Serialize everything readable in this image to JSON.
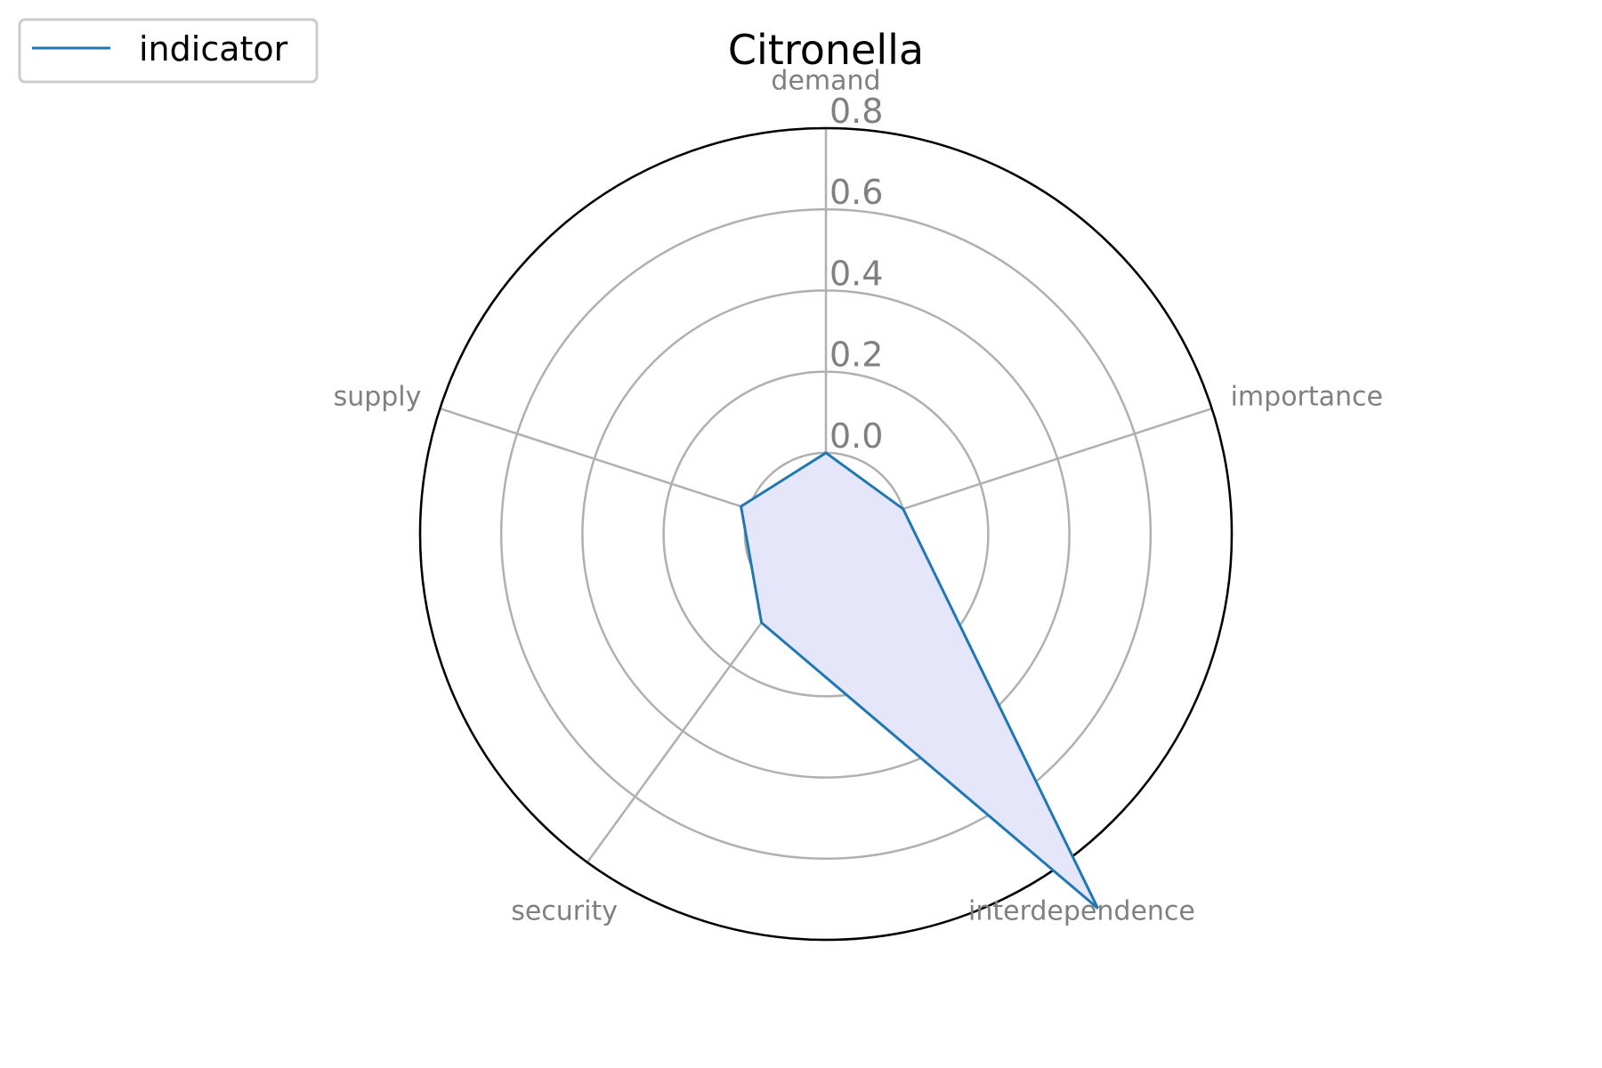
{
  "chart_data": {
    "type": "radar",
    "title": "Citronella",
    "axes": [
      "demand",
      "importance",
      "interdependence",
      "security",
      "supply"
    ],
    "series": [
      {
        "name": "indicator",
        "values": [
          0.0,
          0.0,
          0.94,
          0.07,
          0.02
        ]
      }
    ],
    "r_range": [
      -0.2,
      0.8
    ],
    "r_ticks": [
      0.0,
      0.2,
      0.4,
      0.6,
      0.8
    ],
    "r_tick_labels": [
      "0.0",
      "0.2",
      "0.4",
      "0.6",
      "0.8"
    ],
    "grid": true,
    "legend_position": "top-left",
    "colors": {
      "line": "#1f77b4",
      "fill": "#e6e6fa",
      "grid": "#b0b0b0",
      "outer": "#000000",
      "label": "#808080"
    }
  }
}
